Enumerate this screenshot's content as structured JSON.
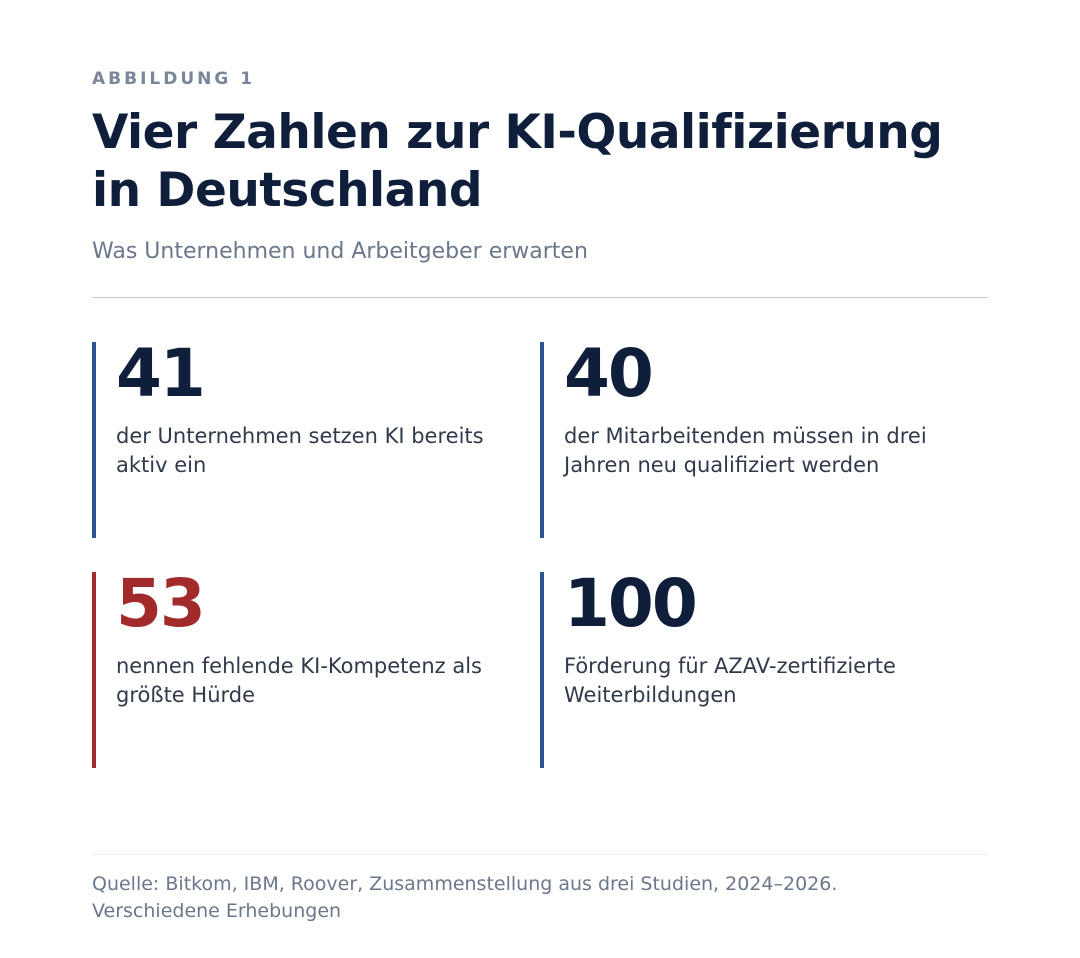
{
  "figure": {
    "eyebrow": "ABBILDUNG 1",
    "title": "Vier Zahlen zur KI-Qualifizierung in Deutschland",
    "subtitle": "Was Unternehmen und Arbeitgeber erwarten"
  },
  "stats": [
    {
      "value": "41",
      "label": "der Unternehmen setzen KI bereits aktiv ein",
      "accent_color": "#2c5291"
    },
    {
      "value": "40",
      "label": "der Mitarbeitenden müssen in drei Jahren neu qualifiziert werden",
      "accent_color": "#2c5291"
    },
    {
      "value": "53",
      "label": "nennen fehlende KI-Kompetenz als größte Hürde",
      "accent_color": "#a32a2a"
    },
    {
      "value": "100",
      "label": "Förderung für AZAV-zertifizierte Weiterbildungen",
      "accent_color": "#2c5291"
    }
  ],
  "footer": {
    "source_line_1": "Quelle: Bitkom, IBM, Roover, Zusammenstellung aus drei Studien, 2024–2026.",
    "source_line_2": "Verschiedene Erhebungen"
  },
  "colors": {
    "title": "#0f1f3b",
    "muted": "#6b778a",
    "accent_blue": "#2c5291",
    "accent_red": "#a32a2a"
  }
}
